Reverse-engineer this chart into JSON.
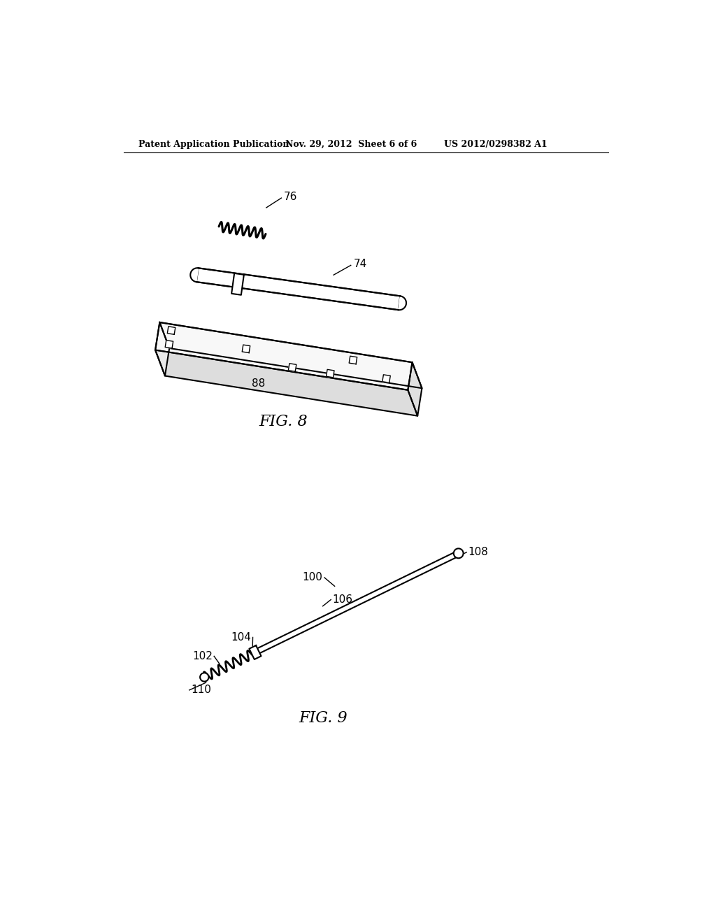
{
  "bg_color": "#ffffff",
  "header_text": "Patent Application Publication",
  "header_date": "Nov. 29, 2012  Sheet 6 of 6",
  "header_patent": "US 2012/0298382 A1",
  "fig8_label": "FIG. 8",
  "fig9_label": "FIG. 9",
  "label_76": "76",
  "label_74": "74",
  "label_88": "88",
  "label_100": "100",
  "label_102": "102",
  "label_104": "104",
  "label_106": "106",
  "label_108": "108",
  "label_110": "110",
  "line_color": "#000000",
  "line_width": 1.5
}
